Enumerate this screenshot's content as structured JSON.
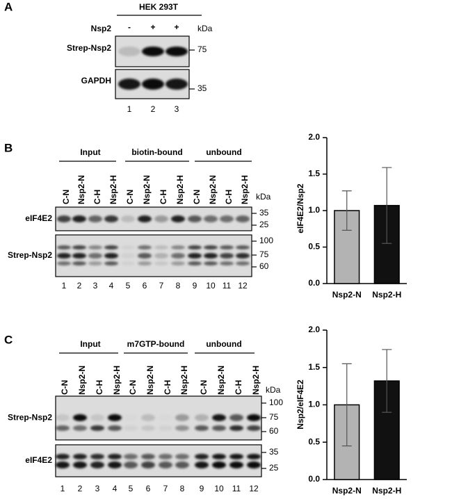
{
  "panel_a": {
    "letter": "A",
    "cell_line": "HEK 293T",
    "treatment_label": "Nsp2",
    "treatment_signs": [
      "-",
      "+",
      "+"
    ],
    "kda": "kDa",
    "rows": [
      {
        "label": "Strep-Nsp2",
        "markers": [
          "75"
        ]
      },
      {
        "label": "GAPDH",
        "markers": [
          "35"
        ]
      }
    ],
    "lanes": [
      "1",
      "2",
      "3"
    ]
  },
  "panel_b": {
    "letter": "B",
    "groups": [
      "Input",
      "biotin-bound",
      "unbound"
    ],
    "lane_labels": [
      "C-N",
      "Nsp2-N",
      "C-H",
      "Nsp2-H",
      "C-N",
      "Nsp2-N",
      "C-H",
      "Nsp2-H",
      "C-N",
      "Nsp2-N",
      "C-H",
      "Nsp2-H"
    ],
    "kda": "kDa",
    "rows": [
      {
        "label": "eIF4E2",
        "markers": [
          "35",
          "25"
        ]
      },
      {
        "label": "Strep-Nsp2",
        "markers": [
          "100",
          "75",
          "60"
        ]
      }
    ],
    "lanes": [
      "1",
      "2",
      "3",
      "4",
      "5",
      "6",
      "7",
      "8",
      "9",
      "10",
      "11",
      "12"
    ]
  },
  "panel_c": {
    "letter": "C",
    "groups": [
      "Input",
      "m7GTP-bound",
      "unbound"
    ],
    "lane_labels": [
      "C-N",
      "Nsp2-N",
      "C-H",
      "Nsp2-H",
      "C-N",
      "Nsp2-N",
      "C-H",
      "Nsp2-H",
      "C-N",
      "Nsp2-N",
      "C-H",
      "Nsp2-H"
    ],
    "kda": "kDa",
    "rows": [
      {
        "label": "Strep-Nsp2",
        "markers": [
          "100",
          "75",
          "60"
        ]
      },
      {
        "label": "eIF4E2",
        "markers": [
          "35",
          "25"
        ]
      }
    ],
    "lanes": [
      "1",
      "2",
      "3",
      "4",
      "5",
      "6",
      "7",
      "8",
      "9",
      "10",
      "11",
      "12"
    ]
  },
  "chart_data": [
    {
      "type": "bar",
      "y_label": "eIF4E2/Nsp2",
      "categories": [
        "Nsp2-N",
        "Nsp2-H"
      ],
      "values": [
        1.0,
        1.07
      ],
      "errors": [
        0.27,
        0.52
      ],
      "colors": [
        "#b3b3b3",
        "#111111"
      ],
      "ylim": [
        0,
        2
      ],
      "yticks": [
        {
          "value": 0,
          "label": "0.0"
        },
        0.5,
        {
          "value": 1,
          "label": "1.0"
        },
        1.5,
        {
          "value": 2,
          "label": "2.0"
        }
      ]
    },
    {
      "type": "bar",
      "y_label": "Nsp2/eIF4E2",
      "categories": [
        "Nsp2-N",
        "Nsp2-H"
      ],
      "values": [
        1.0,
        1.32
      ],
      "errors": [
        0.55,
        0.42
      ],
      "colors": [
        "#b3b3b3",
        "#111111"
      ],
      "ylim": [
        0,
        2
      ],
      "yticks": [
        {
          "value": 0,
          "label": "0.0"
        },
        0.5,
        {
          "value": 1,
          "label": "1.0"
        },
        1.5,
        {
          "value": 2,
          "label": "2.0"
        }
      ]
    }
  ]
}
